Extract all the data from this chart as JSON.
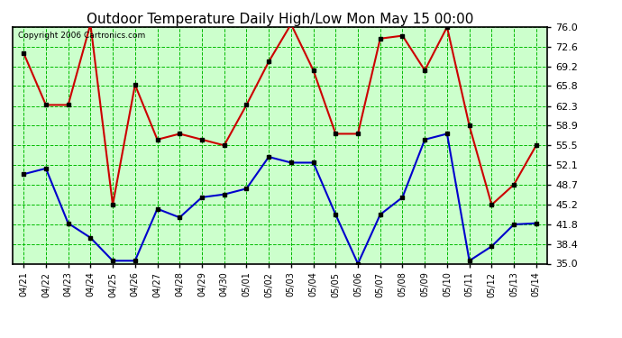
{
  "title": "Outdoor Temperature Daily High/Low Mon May 15 00:00",
  "copyright": "Copyright 2006 Cartronics.com",
  "dates": [
    "04/21",
    "04/22",
    "04/23",
    "04/24",
    "04/25",
    "04/26",
    "04/27",
    "04/28",
    "04/29",
    "04/30",
    "05/01",
    "05/02",
    "05/03",
    "05/04",
    "05/05",
    "05/06",
    "05/07",
    "05/08",
    "05/09",
    "05/10",
    "05/11",
    "05/12",
    "05/13",
    "05/14"
  ],
  "highs": [
    71.5,
    62.5,
    62.5,
    76.5,
    45.2,
    66.0,
    56.5,
    57.5,
    56.5,
    55.5,
    62.5,
    70.0,
    76.5,
    68.5,
    57.5,
    57.5,
    74.0,
    74.5,
    68.5,
    76.0,
    58.9,
    45.2,
    48.7,
    55.5
  ],
  "lows": [
    50.5,
    51.5,
    42.0,
    39.5,
    35.5,
    35.5,
    44.5,
    43.0,
    46.5,
    47.0,
    48.0,
    53.5,
    52.5,
    52.5,
    43.5,
    35.0,
    43.5,
    46.5,
    56.5,
    57.5,
    35.5,
    38.0,
    41.8,
    42.0
  ],
  "high_color": "#cc0000",
  "low_color": "#0000cc",
  "marker_color": "#000000",
  "bg_color": "#ffffff",
  "plot_bg_color": "#ccffcc",
  "grid_color": "#00bb00",
  "title_color": "#000000",
  "copyright_color": "#000000",
  "ylim": [
    35.0,
    76.0
  ],
  "yticks": [
    35.0,
    38.4,
    41.8,
    45.2,
    48.7,
    52.1,
    55.5,
    58.9,
    62.3,
    65.8,
    69.2,
    72.6,
    76.0
  ],
  "title_fontsize": 11,
  "copyright_fontsize": 6.5,
  "tick_fontsize": 8,
  "xtick_fontsize": 7
}
